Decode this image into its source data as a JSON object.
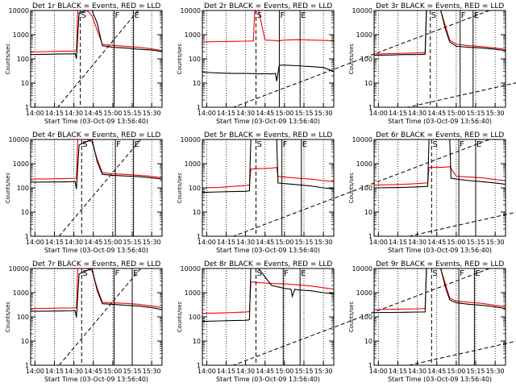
{
  "chart_data": [
    {
      "type": "line",
      "title": "Det 1r BLACK = Events, RED = LLD",
      "xlabel": "Start Time (03-Oct-09 13:56:40)",
      "ylabel": "Counts/sec",
      "xlim": [
        "13:56:40",
        "15:38:00"
      ],
      "ylim": [
        1,
        10000
      ],
      "yscale": "log",
      "x_ticks": [
        "14:00",
        "14:15",
        "14:30",
        "14:45",
        "15:00",
        "15:15",
        "15:30"
      ],
      "y_ticks": [
        "1",
        "10",
        "100",
        "1000",
        "10000"
      ],
      "markers": [
        {
          "label": "S",
          "time": "14:35"
        },
        {
          "label": "F",
          "time": "15:01"
        },
        {
          "label": "E",
          "time": "15:16"
        }
      ],
      "series": [
        {
          "color": "#ff0000",
          "x": [
            "13:56:40",
            "14:10",
            "14:20",
            "14:30",
            "14:32",
            "14:33",
            "14:38",
            "14:40",
            "14:42",
            "14:44",
            "14:48",
            "14:52",
            "15:00",
            "15:10",
            "15:20",
            "15:30",
            "15:38"
          ],
          "y": [
            190,
            200,
            205,
            210,
            220,
            10000,
            10000,
            10000,
            8000,
            6000,
            1500,
            400,
            360,
            330,
            300,
            260,
            220
          ]
        },
        {
          "color": "#000000",
          "x": [
            "13:56:40",
            "14:10",
            "14:20",
            "14:30",
            "14:31",
            "14:32",
            "14:34",
            "14:40",
            "14:44",
            "14:48",
            "14:50",
            "14:52",
            "15:00",
            "15:10",
            "15:20",
            "15:30",
            "15:38"
          ],
          "y": [
            150,
            155,
            160,
            160,
            170,
            100,
            8000,
            10000,
            10000,
            3000,
            1000,
            350,
            300,
            280,
            250,
            230,
            200
          ]
        }
      ]
    },
    {
      "type": "line",
      "title": "Det 2r BLACK = Events, RED = LLD",
      "xlabel": "Start Time (03-Oct-09 13:56:40)",
      "ylabel": "Counts/sec",
      "xlim": [
        "13:56:40",
        "15:38:00"
      ],
      "ylim": [
        1,
        10000
      ],
      "yscale": "log",
      "x_ticks": [
        "14:00",
        "14:15",
        "14:30",
        "14:45",
        "15:00",
        "15:15",
        "15:30"
      ],
      "y_ticks": [
        "1",
        "10",
        "100",
        "1000",
        "10000"
      ],
      "markers": [
        {
          "label": "S",
          "time": "14:38"
        },
        {
          "label": "F",
          "time": "14:56"
        },
        {
          "label": "E",
          "time": "15:12"
        }
      ],
      "series": [
        {
          "color": "#ff0000",
          "x": [
            "13:56:40",
            "14:10",
            "14:20",
            "14:30",
            "14:36",
            "14:37",
            "14:40",
            "14:45",
            "14:50",
            "14:53",
            "14:55",
            "15:00",
            "15:10",
            "15:20",
            "15:30",
            "15:38"
          ],
          "y": [
            500,
            520,
            530,
            540,
            550,
            10000,
            10000,
            600,
            580,
            570,
            550,
            600,
            620,
            600,
            580,
            560
          ]
        },
        {
          "color": "#000000",
          "x": [
            "13:56:40",
            "14:10",
            "14:20",
            "14:30",
            "14:40",
            "14:50",
            "14:53",
            "14:54",
            "14:56",
            "15:00",
            "15:10",
            "15:20",
            "15:30",
            "15:38"
          ],
          "y": [
            28,
            26,
            25,
            25,
            24,
            24,
            25,
            12,
            55,
            55,
            52,
            48,
            44,
            30
          ]
        }
      ]
    },
    {
      "type": "line",
      "title": "Det 3r BLACK = Events, RED = LLD",
      "xlabel": "Start Time (03-Oct-09 13:56:40)",
      "ylabel": "Counts/sec",
      "xlim": [
        "13:56:40",
        "15:38:00"
      ],
      "ylim": [
        1,
        10000
      ],
      "yscale": "log",
      "x_ticks": [
        "14:00",
        "14:15",
        "14:30",
        "14:45",
        "15:00",
        "15:15",
        "15:30"
      ],
      "y_ticks": [
        "1",
        "10",
        "100",
        "1000",
        "10000"
      ],
      "markers": [
        {
          "label": "S",
          "time": "14:40"
        },
        {
          "label": "F",
          "time": "15:03"
        },
        {
          "label": "E",
          "time": "15:13"
        }
      ],
      "series": [
        {
          "color": "#ff0000",
          "x": [
            "13:56:40",
            "14:10",
            "14:20",
            "14:30",
            "14:36",
            "14:37",
            "14:48",
            "14:52",
            "14:55",
            "15:00",
            "15:10",
            "15:20",
            "15:30",
            "15:38"
          ],
          "y": [
            160,
            165,
            170,
            175,
            180,
            10000,
            10000,
            2000,
            600,
            400,
            350,
            320,
            280,
            250
          ]
        },
        {
          "color": "#000000",
          "x": [
            "13:56:40",
            "14:10",
            "14:20",
            "14:30",
            "14:36",
            "14:37",
            "14:48",
            "14:52",
            "14:55",
            "15:00",
            "15:10",
            "15:20",
            "15:30",
            "15:38"
          ],
          "y": [
            140,
            145,
            150,
            150,
            155,
            10000,
            10000,
            1500,
            500,
            330,
            300,
            280,
            250,
            220
          ]
        }
      ]
    },
    {
      "type": "line",
      "title": "Det 4r BLACK = Events, RED = LLD",
      "xlabel": "Start Time (03-Oct-09 13:56:40)",
      "ylabel": "Counts/sec",
      "xlim": [
        "13:56:40",
        "15:38:00"
      ],
      "ylim": [
        1,
        10000
      ],
      "yscale": "log",
      "x_ticks": [
        "14:00",
        "14:15",
        "14:30",
        "14:45",
        "15:00",
        "15:15",
        "15:30"
      ],
      "y_ticks": [
        "1",
        "10",
        "100",
        "1000",
        "10000"
      ],
      "markers": [
        {
          "label": "S",
          "time": "14:36"
        },
        {
          "label": "F",
          "time": "15:02"
        },
        {
          "label": "E",
          "time": "15:16"
        }
      ],
      "series": [
        {
          "color": "#ff0000",
          "x": [
            "13:56:40",
            "14:10",
            "14:20",
            "14:30",
            "14:32",
            "14:33",
            "14:40",
            "14:44",
            "14:48",
            "14:52",
            "15:00",
            "15:10",
            "15:20",
            "15:30",
            "15:38"
          ],
          "y": [
            230,
            235,
            240,
            245,
            250,
            10000,
            10000,
            8000,
            1500,
            420,
            380,
            360,
            330,
            300,
            260
          ]
        },
        {
          "color": "#000000",
          "x": [
            "13:56:40",
            "14:10",
            "14:20",
            "14:30",
            "14:31",
            "14:32",
            "14:34",
            "14:44",
            "14:48",
            "14:52",
            "15:00",
            "15:10",
            "15:20",
            "15:30",
            "15:38"
          ],
          "y": [
            170,
            175,
            175,
            180,
            185,
            90,
            6000,
            10000,
            1200,
            360,
            330,
            310,
            290,
            260,
            230
          ]
        }
      ]
    },
    {
      "type": "line",
      "title": "Det 5r BLACK = Events, RED = LLD",
      "xlabel": "Start Time (03-Oct-09 13:56:40)",
      "ylabel": "Counts/sec",
      "xlim": [
        "13:56:40",
        "15:38:00"
      ],
      "ylim": [
        1,
        10000
      ],
      "yscale": "log",
      "x_ticks": [
        "14:00",
        "14:15",
        "14:30",
        "14:45",
        "15:00",
        "15:15",
        "15:30"
      ],
      "y_ticks": [
        "1",
        "10",
        "100",
        "1000",
        "10000"
      ],
      "markers": [
        {
          "label": "S",
          "time": "14:38"
        },
        {
          "label": "F",
          "time": "14:58"
        },
        {
          "label": "E",
          "time": "15:13"
        }
      ],
      "series": [
        {
          "color": "#ff0000",
          "x": [
            "13:56:40",
            "14:10",
            "14:20",
            "14:30",
            "14:33",
            "14:34",
            "14:40",
            "14:50",
            "14:54",
            "14:55",
            "15:00",
            "15:10",
            "15:20",
            "15:30",
            "15:38"
          ],
          "y": [
            100,
            105,
            115,
            125,
            130,
            600,
            620,
            650,
            700,
            300,
            280,
            250,
            230,
            200,
            180
          ]
        },
        {
          "color": "#000000",
          "x": [
            "13:56:40",
            "14:10",
            "14:20",
            "14:30",
            "14:33",
            "14:34",
            "14:40",
            "14:50",
            "14:54",
            "14:55",
            "15:00",
            "15:10",
            "15:20",
            "15:30",
            "15:38"
          ],
          "y": [
            65,
            68,
            70,
            72,
            75,
            10000,
            10000,
            10000,
            10000,
            160,
            150,
            135,
            120,
            100,
            90
          ]
        }
      ]
    },
    {
      "type": "line",
      "title": "Det 6r BLACK = Events, RED = LLD",
      "xlabel": "Start Time (03-Oct-09 13:56:40)",
      "ylabel": "Counts/sec",
      "xlim": [
        "13:56:40",
        "15:38:00"
      ],
      "ylim": [
        1,
        10000
      ],
      "yscale": "log",
      "x_ticks": [
        "14:00",
        "14:15",
        "14:30",
        "14:45",
        "15:00",
        "15:15",
        "15:30"
      ],
      "y_ticks": [
        "1",
        "10",
        "100",
        "1000",
        "10000"
      ],
      "markers": [
        {
          "label": "S",
          "time": "14:41"
        },
        {
          "label": "F",
          "time": "15:02"
        },
        {
          "label": "E",
          "time": "15:15"
        }
      ],
      "series": [
        {
          "color": "#ff0000",
          "x": [
            "13:56:40",
            "14:10",
            "14:20",
            "14:30",
            "14:38",
            "14:39",
            "14:50",
            "14:55",
            "15:00",
            "15:10",
            "15:20",
            "15:30",
            "15:38"
          ],
          "y": [
            130,
            135,
            140,
            150,
            160,
            700,
            700,
            750,
            300,
            280,
            260,
            220,
            200
          ]
        },
        {
          "color": "#000000",
          "x": [
            "13:56:40",
            "14:10",
            "14:20",
            "14:30",
            "14:38",
            "14:39",
            "14:55",
            "14:56",
            "15:00",
            "15:10",
            "15:20",
            "15:30",
            "15:38"
          ],
          "y": [
            100,
            102,
            105,
            110,
            115,
            10000,
            10000,
            250,
            230,
            200,
            180,
            160,
            140
          ]
        }
      ]
    },
    {
      "type": "line",
      "title": "Det 7r BLACK = Events, RED = LLD",
      "xlabel": "Start Time (03-Oct-09 13:56:40)",
      "ylabel": "Counts/sec",
      "xlim": [
        "13:56:40",
        "15:38:00"
      ],
      "ylim": [
        1,
        10000
      ],
      "yscale": "log",
      "x_ticks": [
        "14:00",
        "14:15",
        "14:30",
        "14:45",
        "15:00",
        "15:15",
        "15:30"
      ],
      "y_ticks": [
        "1",
        "10",
        "100",
        "1000",
        "10000"
      ],
      "markers": [
        {
          "label": "S",
          "time": "14:36"
        },
        {
          "label": "F",
          "time": "15:01"
        },
        {
          "label": "E",
          "time": "15:15"
        }
      ],
      "series": [
        {
          "color": "#ff0000",
          "x": [
            "13:56:40",
            "14:10",
            "14:20",
            "14:30",
            "14:32",
            "14:33",
            "14:40",
            "14:44",
            "14:48",
            "14:52",
            "15:00",
            "15:10",
            "15:20",
            "15:30",
            "15:38"
          ],
          "y": [
            220,
            225,
            230,
            235,
            240,
            10000,
            10000,
            8000,
            1500,
            400,
            380,
            360,
            330,
            280,
            240
          ]
        },
        {
          "color": "#000000",
          "x": [
            "13:56:40",
            "14:10",
            "14:20",
            "14:30",
            "14:31",
            "14:32",
            "14:34",
            "14:44",
            "14:48",
            "14:52",
            "15:00",
            "15:10",
            "15:20",
            "15:30",
            "15:38"
          ],
          "y": [
            170,
            172,
            175,
            178,
            180,
            95,
            6000,
            10000,
            1200,
            350,
            330,
            300,
            280,
            240,
            200
          ]
        }
      ]
    },
    {
      "type": "line",
      "title": "Det 8r BLACK = Events, RED = LLD",
      "xlabel": "Start Time (03-Oct-09 13:56:40)",
      "ylabel": "Counts/sec",
      "xlim": [
        "13:56:40",
        "15:38:00"
      ],
      "ylim": [
        1,
        10000
      ],
      "yscale": "log",
      "x_ticks": [
        "14:00",
        "14:15",
        "14:30",
        "14:45",
        "15:00",
        "15:15",
        "15:30"
      ],
      "y_ticks": [
        "1",
        "10",
        "100",
        "1000",
        "10000"
      ],
      "markers": [
        {
          "label": "S",
          "time": "14:38"
        },
        {
          "label": "F",
          "time": "14:59"
        },
        {
          "label": "E",
          "time": "15:12"
        }
      ],
      "series": [
        {
          "color": "#ff0000",
          "x": [
            "13:56:40",
            "14:10",
            "14:20",
            "14:30",
            "14:33",
            "14:34",
            "14:40",
            "14:50",
            "15:00",
            "15:10",
            "15:20",
            "15:30",
            "15:38"
          ],
          "y": [
            140,
            145,
            150,
            160,
            165,
            2800,
            2600,
            2400,
            2300,
            2100,
            1900,
            1600,
            1400
          ]
        },
        {
          "color": "#000000",
          "x": [
            "13:56:40",
            "14:10",
            "14:20",
            "14:30",
            "14:33",
            "14:34",
            "14:40",
            "14:50",
            "15:00",
            "15:05",
            "15:06",
            "15:08",
            "15:10",
            "15:20",
            "15:30",
            "15:38"
          ],
          "y": [
            65,
            68,
            70,
            72,
            75,
            10000,
            10000,
            2000,
            1500,
            1400,
            700,
            1400,
            1300,
            1200,
            1000,
            900
          ]
        }
      ]
    },
    {
      "type": "line",
      "title": "Det 9r BLACK = Events, RED = LLD",
      "xlabel": "Start Time (03-Oct-09 13:56:40)",
      "ylabel": "Counts/sec",
      "xlim": [
        "13:56:40",
        "15:38:00"
      ],
      "ylim": [
        1,
        10000
      ],
      "yscale": "log",
      "x_ticks": [
        "14:00",
        "14:15",
        "14:30",
        "14:45",
        "15:00",
        "15:15",
        "15:30"
      ],
      "y_ticks": [
        "1",
        "10",
        "100",
        "1000",
        "10000"
      ],
      "markers": [
        {
          "label": "S",
          "time": "14:41"
        },
        {
          "label": "F",
          "time": "15:02"
        },
        {
          "label": "E",
          "time": "15:14"
        }
      ],
      "series": [
        {
          "color": "#ff0000",
          "x": [
            "13:56:40",
            "14:10",
            "14:20",
            "14:30",
            "14:36",
            "14:37",
            "14:48",
            "14:52",
            "14:55",
            "15:00",
            "15:10",
            "15:20",
            "15:30",
            "15:38"
          ],
          "y": [
            200,
            205,
            210,
            215,
            220,
            10000,
            10000,
            2000,
            600,
            450,
            400,
            360,
            300,
            260
          ]
        },
        {
          "color": "#000000",
          "x": [
            "13:56:40",
            "14:10",
            "14:20",
            "14:30",
            "14:36",
            "14:37",
            "14:48",
            "14:52",
            "14:55",
            "15:00",
            "15:10",
            "15:20",
            "15:30",
            "15:38"
          ],
          "y": [
            150,
            152,
            155,
            158,
            160,
            10000,
            10000,
            1500,
            500,
            380,
            330,
            300,
            260,
            220
          ]
        }
      ]
    }
  ]
}
